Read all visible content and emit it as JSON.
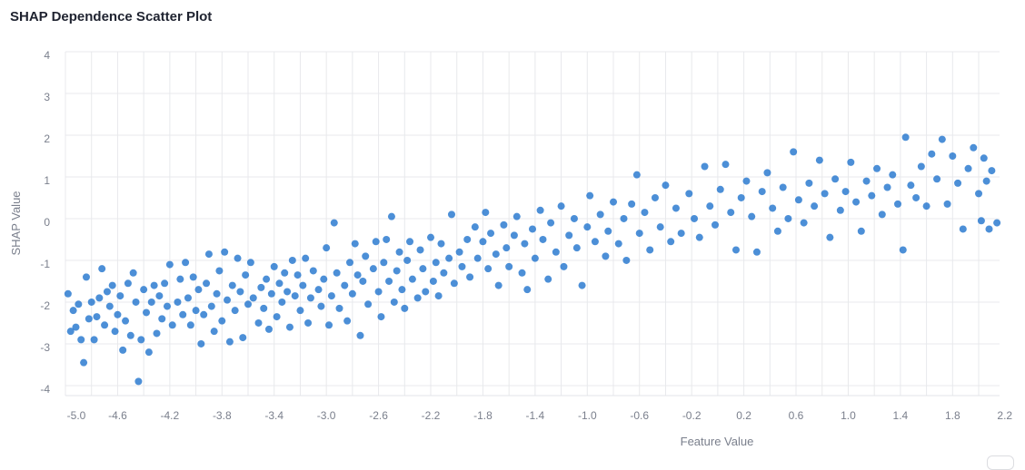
{
  "chart_data": {
    "type": "scatter",
    "title": "SHAP Dependence Scatter Plot",
    "xlabel": "Feature Value",
    "ylabel": "SHAP Value",
    "xlim": [
      -5.0,
      2.16
    ],
    "ylim": [
      -4.24,
      4.0
    ],
    "x_ticks": [
      "-5.0",
      "-4.6",
      "-4.2",
      "-3.8",
      "-3.4",
      "-3.0",
      "-2.6",
      "-2.2",
      "-1.8",
      "-1.4",
      "-1.0",
      "-0.6",
      "-0.2",
      "0.2",
      "0.6",
      "1.0",
      "1.4",
      "1.8",
      "2.2"
    ],
    "x_tick_values": [
      -5.0,
      -4.6,
      -4.2,
      -3.8,
      -3.4,
      -3.0,
      -2.6,
      -2.2,
      -1.8,
      -1.4,
      -1.0,
      -0.6,
      -0.2,
      0.2,
      0.6,
      1.0,
      1.4,
      1.8,
      2.2
    ],
    "y_ticks": [
      "4",
      "3",
      "2",
      "1",
      "0",
      "-1",
      "-2",
      "-3",
      "-4"
    ],
    "y_tick_values": [
      4,
      3,
      2,
      1,
      0,
      -1,
      -2,
      -3,
      -4
    ],
    "grid": true,
    "point_color": "#1a6fcc",
    "points": [
      [
        -4.98,
        -1.8
      ],
      [
        -4.96,
        -2.7
      ],
      [
        -4.94,
        -2.2
      ],
      [
        -4.92,
        -2.6
      ],
      [
        -4.9,
        -2.05
      ],
      [
        -4.88,
        -2.9
      ],
      [
        -4.86,
        -3.45
      ],
      [
        -4.84,
        -1.4
      ],
      [
        -4.82,
        -2.4
      ],
      [
        -4.8,
        -2.0
      ],
      [
        -4.78,
        -2.9
      ],
      [
        -4.76,
        -2.35
      ],
      [
        -4.74,
        -1.9
      ],
      [
        -4.72,
        -1.2
      ],
      [
        -4.7,
        -2.55
      ],
      [
        -4.68,
        -1.75
      ],
      [
        -4.66,
        -2.1
      ],
      [
        -4.64,
        -1.6
      ],
      [
        -4.62,
        -2.7
      ],
      [
        -4.6,
        -2.3
      ],
      [
        -4.58,
        -1.85
      ],
      [
        -4.56,
        -3.15
      ],
      [
        -4.54,
        -2.45
      ],
      [
        -4.52,
        -1.55
      ],
      [
        -4.5,
        -2.8
      ],
      [
        -4.48,
        -1.3
      ],
      [
        -4.46,
        -2.0
      ],
      [
        -4.44,
        -3.9
      ],
      [
        -4.42,
        -2.9
      ],
      [
        -4.4,
        -1.7
      ],
      [
        -4.38,
        -2.25
      ],
      [
        -4.36,
        -3.2
      ],
      [
        -4.34,
        -2.0
      ],
      [
        -4.32,
        -1.6
      ],
      [
        -4.3,
        -2.75
      ],
      [
        -4.28,
        -1.85
      ],
      [
        -4.26,
        -2.4
      ],
      [
        -4.24,
        -1.55
      ],
      [
        -4.22,
        -2.1
      ],
      [
        -4.2,
        -1.1
      ],
      [
        -4.18,
        -2.55
      ],
      [
        -4.14,
        -2.0
      ],
      [
        -4.12,
        -1.45
      ],
      [
        -4.1,
        -2.3
      ],
      [
        -4.08,
        -1.05
      ],
      [
        -4.06,
        -1.9
      ],
      [
        -4.04,
        -2.55
      ],
      [
        -4.02,
        -1.4
      ],
      [
        -4.0,
        -2.2
      ],
      [
        -3.98,
        -1.7
      ],
      [
        -3.96,
        -3.0
      ],
      [
        -3.94,
        -2.3
      ],
      [
        -3.92,
        -1.55
      ],
      [
        -3.9,
        -0.85
      ],
      [
        -3.88,
        -2.1
      ],
      [
        -3.86,
        -2.7
      ],
      [
        -3.84,
        -1.8
      ],
      [
        -3.82,
        -1.25
      ],
      [
        -3.8,
        -2.45
      ],
      [
        -3.78,
        -0.8
      ],
      [
        -3.76,
        -1.95
      ],
      [
        -3.74,
        -2.95
      ],
      [
        -3.72,
        -1.6
      ],
      [
        -3.7,
        -2.2
      ],
      [
        -3.68,
        -0.95
      ],
      [
        -3.66,
        -1.75
      ],
      [
        -3.64,
        -2.85
      ],
      [
        -3.62,
        -1.35
      ],
      [
        -3.6,
        -2.05
      ],
      [
        -3.58,
        -1.05
      ],
      [
        -3.56,
        -1.9
      ],
      [
        -3.52,
        -2.5
      ],
      [
        -3.5,
        -1.65
      ],
      [
        -3.48,
        -2.15
      ],
      [
        -3.46,
        -1.45
      ],
      [
        -3.44,
        -2.65
      ],
      [
        -3.42,
        -1.8
      ],
      [
        -3.4,
        -1.15
      ],
      [
        -3.38,
        -2.35
      ],
      [
        -3.36,
        -1.55
      ],
      [
        -3.34,
        -2.0
      ],
      [
        -3.32,
        -1.3
      ],
      [
        -3.3,
        -1.75
      ],
      [
        -3.28,
        -2.6
      ],
      [
        -3.26,
        -1.0
      ],
      [
        -3.24,
        -1.85
      ],
      [
        -3.22,
        -1.35
      ],
      [
        -3.2,
        -2.2
      ],
      [
        -3.18,
        -1.6
      ],
      [
        -3.16,
        -0.95
      ],
      [
        -3.14,
        -2.5
      ],
      [
        -3.12,
        -1.9
      ],
      [
        -3.1,
        -1.25
      ],
      [
        -3.06,
        -1.7
      ],
      [
        -3.04,
        -2.1
      ],
      [
        -3.02,
        -1.45
      ],
      [
        -3.0,
        -0.7
      ],
      [
        -2.98,
        -2.55
      ],
      [
        -2.96,
        -1.85
      ],
      [
        -2.94,
        -0.1
      ],
      [
        -2.92,
        -1.3
      ],
      [
        -2.9,
        -2.15
      ],
      [
        -2.86,
        -1.6
      ],
      [
        -2.84,
        -2.45
      ],
      [
        -2.82,
        -1.05
      ],
      [
        -2.8,
        -1.8
      ],
      [
        -2.78,
        -0.6
      ],
      [
        -2.76,
        -1.35
      ],
      [
        -2.74,
        -2.8
      ],
      [
        -2.72,
        -1.5
      ],
      [
        -2.7,
        -0.9
      ],
      [
        -2.68,
        -2.05
      ],
      [
        -2.64,
        -1.2
      ],
      [
        -2.62,
        -0.55
      ],
      [
        -2.6,
        -1.75
      ],
      [
        -2.58,
        -2.35
      ],
      [
        -2.56,
        -1.05
      ],
      [
        -2.54,
        -0.5
      ],
      [
        -2.52,
        -1.5
      ],
      [
        -2.5,
        0.05
      ],
      [
        -2.48,
        -2.0
      ],
      [
        -2.46,
        -1.25
      ],
      [
        -2.44,
        -0.8
      ],
      [
        -2.42,
        -1.7
      ],
      [
        -2.4,
        -2.15
      ],
      [
        -2.38,
        -1.0
      ],
      [
        -2.36,
        -0.55
      ],
      [
        -2.34,
        -1.45
      ],
      [
        -2.3,
        -1.9
      ],
      [
        -2.28,
        -0.75
      ],
      [
        -2.26,
        -1.2
      ],
      [
        -2.24,
        -1.75
      ],
      [
        -2.2,
        -0.45
      ],
      [
        -2.18,
        -1.5
      ],
      [
        -2.16,
        -1.05
      ],
      [
        -2.14,
        -1.85
      ],
      [
        -2.12,
        -0.6
      ],
      [
        -2.1,
        -1.3
      ],
      [
        -2.06,
        -0.95
      ],
      [
        -2.04,
        0.1
      ],
      [
        -2.02,
        -1.55
      ],
      [
        -1.98,
        -0.8
      ],
      [
        -1.96,
        -1.15
      ],
      [
        -1.92,
        -0.5
      ],
      [
        -1.9,
        -1.4
      ],
      [
        -1.86,
        -0.2
      ],
      [
        -1.84,
        -0.95
      ],
      [
        -1.8,
        -0.55
      ],
      [
        -1.78,
        0.15
      ],
      [
        -1.76,
        -1.2
      ],
      [
        -1.74,
        -0.35
      ],
      [
        -1.7,
        -0.85
      ],
      [
        -1.68,
        -1.6
      ],
      [
        -1.64,
        -0.15
      ],
      [
        -1.62,
        -0.7
      ],
      [
        -1.6,
        -1.15
      ],
      [
        -1.56,
        -0.4
      ],
      [
        -1.54,
        0.05
      ],
      [
        -1.5,
        -1.3
      ],
      [
        -1.48,
        -0.6
      ],
      [
        -1.46,
        -1.7
      ],
      [
        -1.42,
        -0.25
      ],
      [
        -1.4,
        -0.95
      ],
      [
        -1.36,
        0.2
      ],
      [
        -1.34,
        -0.5
      ],
      [
        -1.3,
        -1.45
      ],
      [
        -1.28,
        -0.1
      ],
      [
        -1.24,
        -0.8
      ],
      [
        -1.2,
        0.3
      ],
      [
        -1.18,
        -1.15
      ],
      [
        -1.14,
        -0.4
      ],
      [
        -1.1,
        0.0
      ],
      [
        -1.08,
        -0.7
      ],
      [
        -1.04,
        -1.6
      ],
      [
        -1.0,
        -0.2
      ],
      [
        -0.98,
        0.55
      ],
      [
        -0.94,
        -0.55
      ],
      [
        -0.9,
        0.1
      ],
      [
        -0.86,
        -0.9
      ],
      [
        -0.84,
        -0.3
      ],
      [
        -0.8,
        0.4
      ],
      [
        -0.76,
        -0.6
      ],
      [
        -0.72,
        0.0
      ],
      [
        -0.7,
        -1.0
      ],
      [
        -0.66,
        0.35
      ],
      [
        -0.62,
        1.05
      ],
      [
        -0.6,
        -0.35
      ],
      [
        -0.56,
        0.15
      ],
      [
        -0.52,
        -0.75
      ],
      [
        -0.48,
        0.5
      ],
      [
        -0.44,
        -0.2
      ],
      [
        -0.4,
        0.8
      ],
      [
        -0.36,
        -0.55
      ],
      [
        -0.32,
        0.25
      ],
      [
        -0.28,
        -0.35
      ],
      [
        -0.22,
        0.6
      ],
      [
        -0.18,
        0.0
      ],
      [
        -0.14,
        -0.45
      ],
      [
        -0.1,
        1.25
      ],
      [
        -0.06,
        0.3
      ],
      [
        -0.02,
        -0.15
      ],
      [
        0.02,
        0.7
      ],
      [
        0.06,
        1.3
      ],
      [
        0.1,
        0.15
      ],
      [
        0.14,
        -0.75
      ],
      [
        0.18,
        0.5
      ],
      [
        0.22,
        0.9
      ],
      [
        0.26,
        0.05
      ],
      [
        0.3,
        -0.8
      ],
      [
        0.34,
        0.65
      ],
      [
        0.38,
        1.1
      ],
      [
        0.42,
        0.25
      ],
      [
        0.46,
        -0.3
      ],
      [
        0.5,
        0.75
      ],
      [
        0.54,
        0.0
      ],
      [
        0.58,
        1.6
      ],
      [
        0.62,
        0.45
      ],
      [
        0.66,
        -0.1
      ],
      [
        0.7,
        0.85
      ],
      [
        0.74,
        0.3
      ],
      [
        0.78,
        1.4
      ],
      [
        0.82,
        0.6
      ],
      [
        0.86,
        -0.45
      ],
      [
        0.9,
        0.95
      ],
      [
        0.94,
        0.2
      ],
      [
        0.98,
        0.65
      ],
      [
        1.02,
        1.35
      ],
      [
        1.06,
        0.4
      ],
      [
        1.1,
        -0.3
      ],
      [
        1.14,
        0.9
      ],
      [
        1.18,
        0.55
      ],
      [
        1.22,
        1.2
      ],
      [
        1.26,
        0.1
      ],
      [
        1.3,
        0.75
      ],
      [
        1.34,
        1.05
      ],
      [
        1.38,
        0.35
      ],
      [
        1.42,
        -0.75
      ],
      [
        1.44,
        1.95
      ],
      [
        1.48,
        0.8
      ],
      [
        1.52,
        0.5
      ],
      [
        1.56,
        1.25
      ],
      [
        1.6,
        0.3
      ],
      [
        1.64,
        1.55
      ],
      [
        1.68,
        0.95
      ],
      [
        1.72,
        1.9
      ],
      [
        1.76,
        0.35
      ],
      [
        1.8,
        1.5
      ],
      [
        1.84,
        0.85
      ],
      [
        1.88,
        -0.25
      ],
      [
        1.92,
        1.2
      ],
      [
        1.96,
        1.7
      ],
      [
        2.0,
        0.6
      ],
      [
        2.02,
        -0.05
      ],
      [
        2.04,
        1.45
      ],
      [
        2.06,
        0.9
      ],
      [
        2.08,
        -0.25
      ],
      [
        2.1,
        1.15
      ],
      [
        2.14,
        -0.1
      ]
    ]
  }
}
